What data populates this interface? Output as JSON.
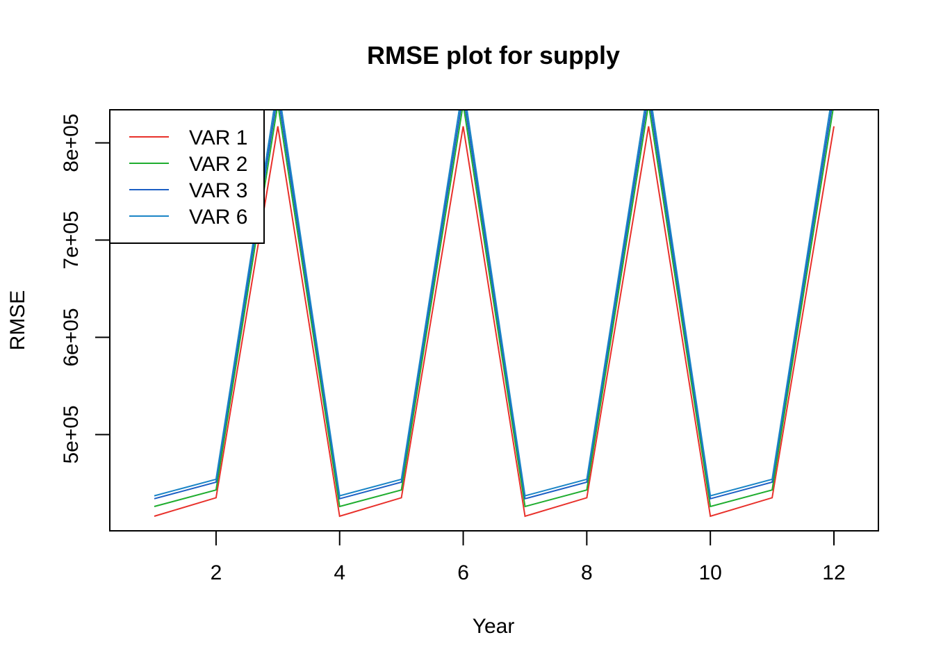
{
  "chart_data": {
    "type": "line",
    "title": "RMSE plot for supply",
    "xlabel": "Year",
    "ylabel": "RMSE",
    "x": [
      1,
      2,
      3,
      4,
      5,
      6,
      7,
      8,
      9,
      10,
      11,
      12
    ],
    "xlim": [
      0.28,
      12.72
    ],
    "ylim": [
      401000,
      834000
    ],
    "x_ticks": [
      2,
      4,
      6,
      8,
      10,
      12
    ],
    "x_tick_labels": [
      "2",
      "4",
      "6",
      "8",
      "10",
      "12"
    ],
    "y_ticks": [
      500000,
      600000,
      700000,
      800000
    ],
    "y_tick_labels": [
      "5e+05",
      "6e+05",
      "7e+05",
      "8e+05"
    ],
    "grid": false,
    "legend_position": "top-left",
    "series": [
      {
        "name": "VAR 1",
        "color": "#e8302a",
        "values": [
          416000,
          435000,
          817000,
          416000,
          435000,
          817000,
          416000,
          435000,
          817000,
          416000,
          435000,
          817000
        ]
      },
      {
        "name": "VAR 2",
        "color": "#1fad2f",
        "values": [
          426000,
          443000,
          840000,
          426000,
          443000,
          840000,
          426000,
          443000,
          840000,
          426000,
          443000,
          840000
        ]
      },
      {
        "name": "VAR 3",
        "color": "#1c5fc4",
        "values": [
          434000,
          451000,
          850000,
          434000,
          451000,
          850000,
          434000,
          451000,
          850000,
          434000,
          451000,
          850000
        ]
      },
      {
        "name": "VAR 6",
        "color": "#1a85c6",
        "values": [
          437000,
          454000,
          860000,
          437000,
          454000,
          860000,
          437000,
          454000,
          860000,
          437000,
          454000,
          860000
        ]
      }
    ]
  }
}
